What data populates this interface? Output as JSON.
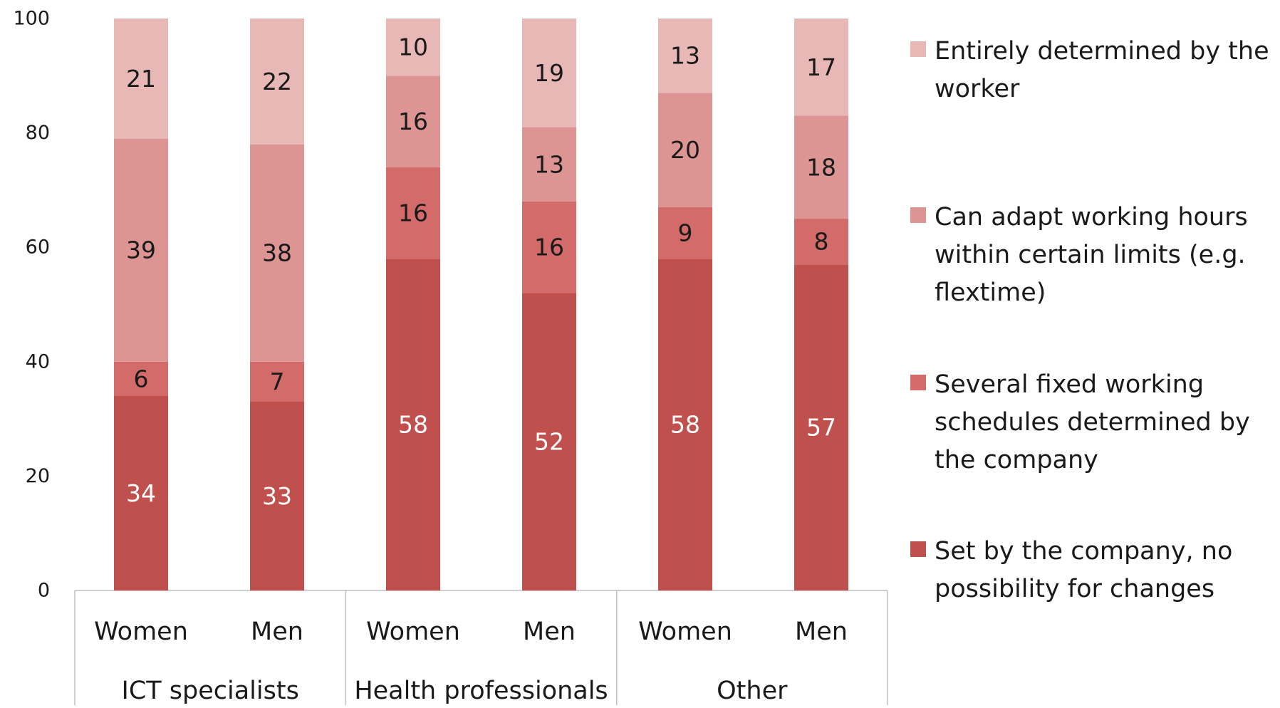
{
  "chart_data": {
    "type": "bar",
    "stacked": true,
    "groups": [
      {
        "name": "ICT specialists",
        "categories": [
          "Women",
          "Men"
        ]
      },
      {
        "name": "Health professionals",
        "categories": [
          "Women",
          "Men"
        ]
      },
      {
        "name": "Other",
        "categories": [
          "Women",
          "Men"
        ]
      }
    ],
    "series": [
      {
        "name": "Set by the company, no possibility for changes",
        "color": "#c0504d",
        "label_color": "#ffffff",
        "values": [
          34,
          33,
          58,
          52,
          58,
          57
        ]
      },
      {
        "name": "Several fixed working schedules determined by the company",
        "color": "#d26b69",
        "label_color": "#1a1a1a",
        "values": [
          6,
          7,
          16,
          16,
          9,
          8
        ]
      },
      {
        "name": "Can adapt working hours within certain limits (e.g. flextime)",
        "color": "#dd9593",
        "label_color": "#1a1a1a",
        "values": [
          39,
          38,
          16,
          13,
          20,
          18
        ]
      },
      {
        "name": "Entirely determined by the worker",
        "color": "#e8b8b7",
        "label_color": "#1a1a1a",
        "values": [
          21,
          22,
          10,
          19,
          13,
          17
        ]
      }
    ],
    "legend_order": [
      "Entirely determined by the worker",
      "Can adapt working hours within certain limits (e.g. flextime)",
      "Several fixed working schedules determined by the company",
      "Set by the company, no possibility for changes"
    ],
    "y_ticks": [
      "0",
      "20",
      "40",
      "60",
      "80",
      "100"
    ],
    "ylim": [
      0,
      100
    ],
    "legend_position": "right",
    "grid": false
  }
}
